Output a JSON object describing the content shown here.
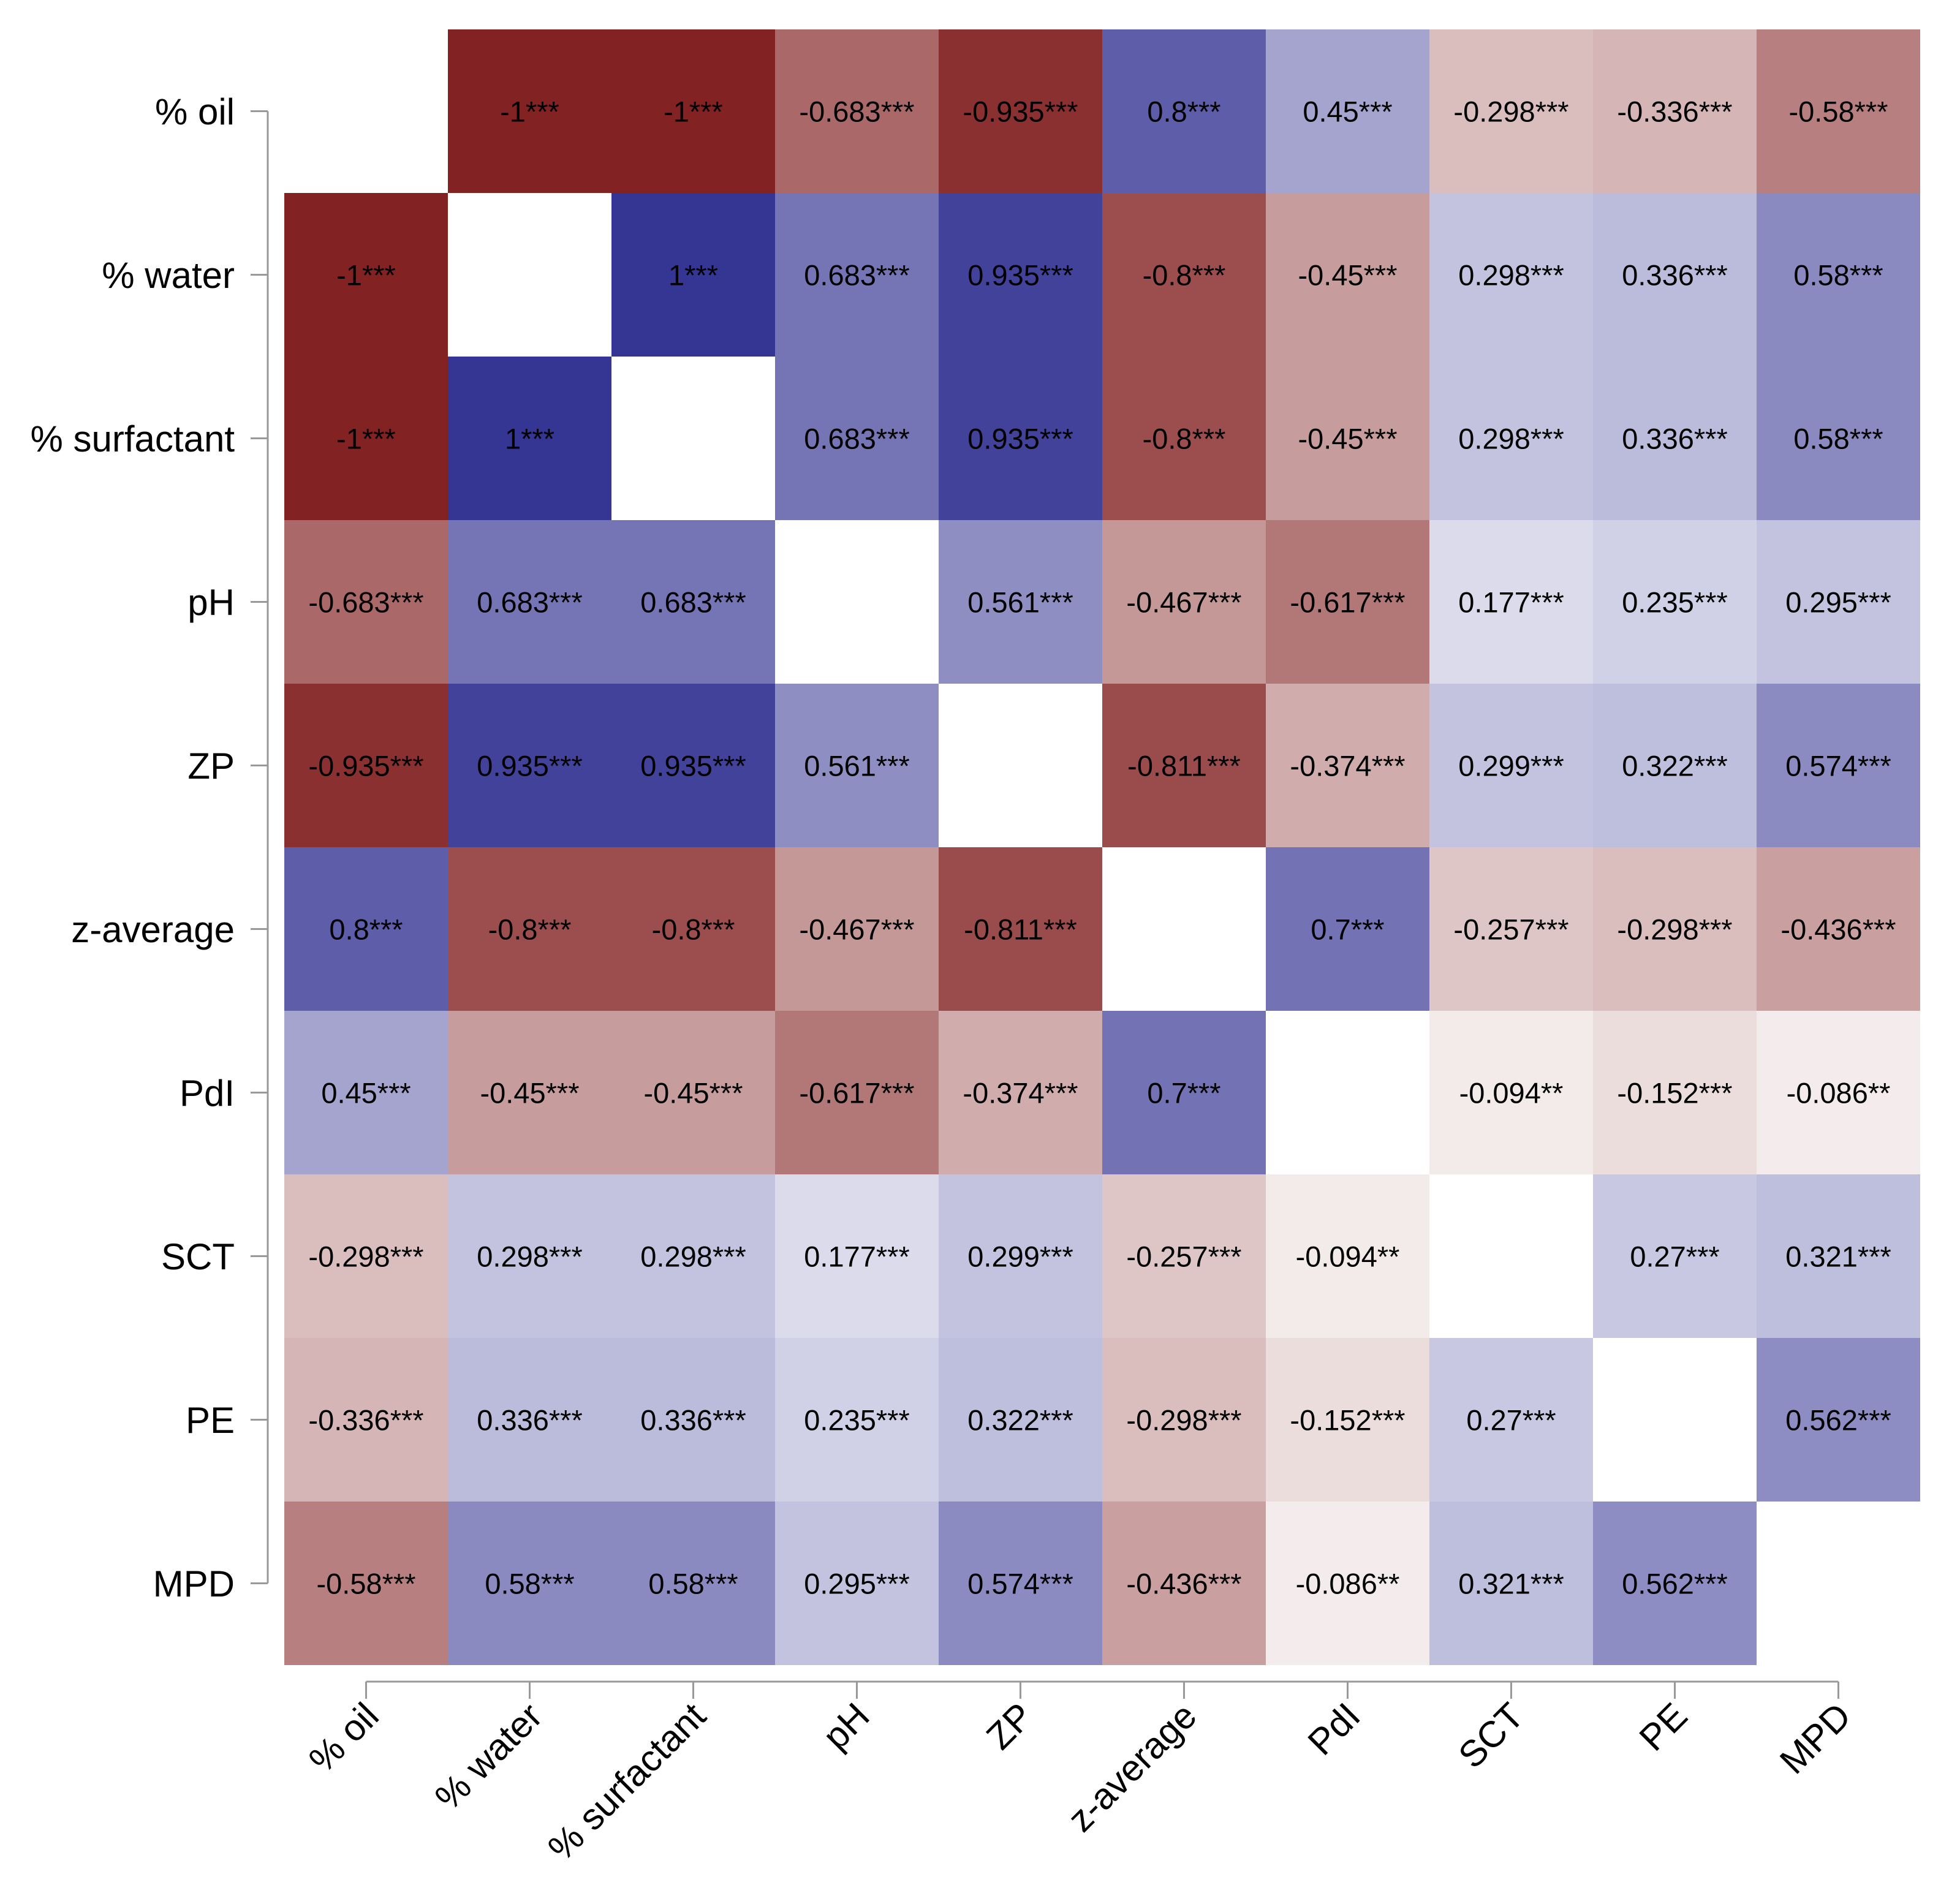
{
  "chart_data": {
    "type": "heatmap",
    "title": "",
    "xlabel": "",
    "ylabel": "",
    "categories": [
      "% oil",
      "% water",
      "% surfactant",
      "pH",
      "ZP",
      "z-average",
      "PdI",
      "SCT",
      "PE",
      "MPD"
    ],
    "matrix": [
      [
        null,
        -1,
        -1,
        -0.683,
        -0.935,
        0.8,
        0.45,
        -0.298,
        -0.336,
        -0.58
      ],
      [
        -1,
        null,
        1,
        0.683,
        0.935,
        -0.8,
        -0.45,
        0.298,
        0.336,
        0.58
      ],
      [
        -1,
        1,
        null,
        0.683,
        0.935,
        -0.8,
        -0.45,
        0.298,
        0.336,
        0.58
      ],
      [
        -0.683,
        0.683,
        0.683,
        null,
        0.561,
        -0.467,
        -0.617,
        0.177,
        0.235,
        0.295
      ],
      [
        -0.935,
        0.935,
        0.935,
        0.561,
        null,
        -0.811,
        -0.374,
        0.299,
        0.322,
        0.574
      ],
      [
        0.8,
        -0.8,
        -0.8,
        -0.467,
        -0.811,
        null,
        0.7,
        -0.257,
        -0.298,
        -0.436
      ],
      [
        0.45,
        -0.45,
        -0.45,
        -0.617,
        -0.374,
        0.7,
        null,
        -0.094,
        -0.152,
        -0.086
      ],
      [
        -0.298,
        0.298,
        0.298,
        0.177,
        0.299,
        -0.257,
        -0.094,
        null,
        0.27,
        0.321
      ],
      [
        -0.336,
        0.336,
        0.336,
        0.235,
        0.322,
        -0.298,
        -0.152,
        0.27,
        null,
        0.562
      ],
      [
        -0.58,
        0.58,
        0.58,
        0.295,
        0.574,
        -0.436,
        -0.086,
        0.321,
        0.562,
        null
      ]
    ],
    "labels": [
      [
        null,
        "-1***",
        "-1***",
        "-0.683***",
        "-0.935***",
        "0.8***",
        "0.45***",
        "-0.298***",
        "-0.336***",
        "-0.58***"
      ],
      [
        "-1***",
        null,
        "1***",
        "0.683***",
        "0.935***",
        "-0.8***",
        "-0.45***",
        "0.298***",
        "0.336***",
        "0.58***"
      ],
      [
        "-1***",
        "1***",
        null,
        "0.683***",
        "0.935***",
        "-0.8***",
        "-0.45***",
        "0.298***",
        "0.336***",
        "0.58***"
      ],
      [
        "-0.683***",
        "0.683***",
        "0.683***",
        null,
        "0.561***",
        "-0.467***",
        "-0.617***",
        "0.177***",
        "0.235***",
        "0.295***"
      ],
      [
        "-0.935***",
        "0.935***",
        "0.935***",
        "0.561***",
        null,
        "-0.811***",
        "-0.374***",
        "0.299***",
        "0.322***",
        "0.574***"
      ],
      [
        "0.8***",
        "-0.8***",
        "-0.8***",
        "-0.467***",
        "-0.811***",
        null,
        "0.7***",
        "-0.257***",
        "-0.298***",
        "-0.436***"
      ],
      [
        "0.45***",
        "-0.45***",
        "-0.45***",
        "-0.617***",
        "-0.374***",
        "0.7***",
        null,
        "-0.094**",
        "-0.152***",
        "-0.086**"
      ],
      [
        "-0.298***",
        "0.298***",
        "0.298***",
        "0.177***",
        "0.299***",
        "-0.257***",
        "-0.094**",
        null,
        "0.27***",
        "0.321***"
      ],
      [
        "-0.336***",
        "0.336***",
        "0.336***",
        "0.235***",
        "0.322***",
        "-0.298***",
        "-0.152***",
        "0.27***",
        null,
        "0.562***"
      ],
      [
        "-0.58***",
        "0.58***",
        "0.58***",
        "0.295***",
        "0.574***",
        "-0.436***",
        "-0.086**",
        "0.321***",
        "0.562***",
        null
      ]
    ],
    "value_range": [
      -1,
      1
    ],
    "colors": {
      "negative": "#832222",
      "neutral": "#ffffff",
      "positive": "#353594",
      "axis": "#999999",
      "text": "#000000"
    },
    "diagonal": "blank",
    "grid": false,
    "legend": "none"
  }
}
